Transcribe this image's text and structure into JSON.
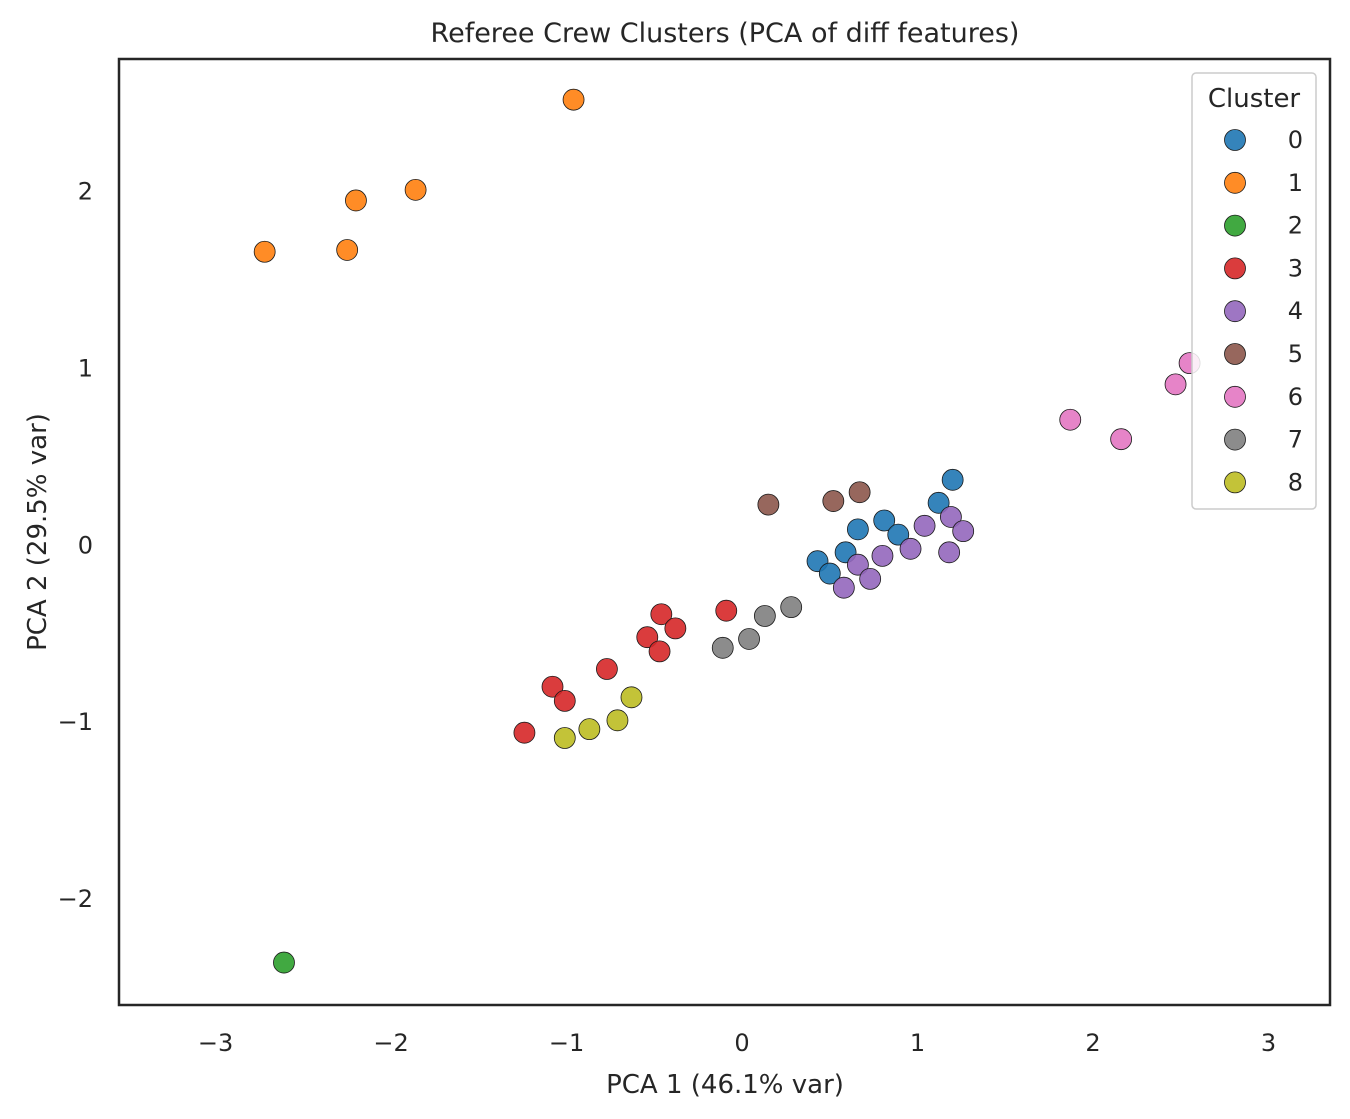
{
  "chart_data": {
    "type": "scatter",
    "title": "Referee Crew Clusters (PCA of diff features)",
    "xlabel": "PCA 1 (46.1% var)",
    "ylabel": "PCA 2 (29.5% var)",
    "xlim": [
      -3.55,
      3.35
    ],
    "ylim": [
      -2.6,
      2.75
    ],
    "xticks": [
      -3,
      -2,
      -1,
      0,
      1,
      2,
      3
    ],
    "xtick_labels": [
      "−3",
      "−2",
      "−1",
      "0",
      "1",
      "2",
      "3"
    ],
    "yticks": [
      -2,
      -1,
      0,
      1,
      2
    ],
    "ytick_labels": [
      "−2",
      "−1",
      "0",
      "1",
      "2"
    ],
    "grid": false,
    "legend": {
      "title": "Cluster",
      "placement": "top-right"
    },
    "series": [
      {
        "name": "0",
        "color": "#1f77b4",
        "points": [
          [
            0.43,
            -0.09
          ],
          [
            0.5,
            -0.16
          ],
          [
            0.59,
            -0.04
          ],
          [
            0.66,
            0.09
          ],
          [
            0.81,
            0.14
          ],
          [
            0.89,
            0.06
          ],
          [
            1.12,
            0.24
          ],
          [
            1.2,
            0.37
          ]
        ]
      },
      {
        "name": "1",
        "color": "#ff7f0e",
        "points": [
          [
            -0.96,
            2.52
          ],
          [
            -1.86,
            2.01
          ],
          [
            -2.2,
            1.95
          ],
          [
            -2.72,
            1.66
          ],
          [
            -2.25,
            1.67
          ]
        ]
      },
      {
        "name": "2",
        "color": "#2ca02c",
        "points": [
          [
            -2.61,
            -2.36
          ]
        ]
      },
      {
        "name": "3",
        "color": "#d62728",
        "points": [
          [
            -0.09,
            -0.37
          ],
          [
            -0.46,
            -0.39
          ],
          [
            -0.38,
            -0.47
          ],
          [
            -0.54,
            -0.52
          ],
          [
            -0.47,
            -0.6
          ],
          [
            -0.77,
            -0.7
          ],
          [
            -1.08,
            -0.8
          ],
          [
            -1.01,
            -0.88
          ],
          [
            -1.24,
            -1.06
          ]
        ]
      },
      {
        "name": "4",
        "color": "#9467bd",
        "points": [
          [
            1.04,
            0.11
          ],
          [
            1.19,
            0.16
          ],
          [
            1.26,
            0.08
          ],
          [
            0.96,
            -0.02
          ],
          [
            0.8,
            -0.06
          ],
          [
            0.66,
            -0.11
          ],
          [
            0.73,
            -0.19
          ],
          [
            0.58,
            -0.24
          ],
          [
            1.18,
            -0.04
          ]
        ]
      },
      {
        "name": "5",
        "color": "#8c564b",
        "points": [
          [
            0.15,
            0.23
          ],
          [
            0.52,
            0.25
          ],
          [
            0.67,
            0.3
          ]
        ]
      },
      {
        "name": "6",
        "color": "#e377c2",
        "points": [
          [
            2.55,
            1.03
          ],
          [
            2.47,
            0.91
          ],
          [
            1.87,
            0.71
          ],
          [
            2.16,
            0.6
          ]
        ]
      },
      {
        "name": "7",
        "color": "#7f7f7f",
        "points": [
          [
            0.28,
            -0.35
          ],
          [
            0.13,
            -0.4
          ],
          [
            0.04,
            -0.53
          ],
          [
            -0.11,
            -0.58
          ]
        ]
      },
      {
        "name": "8",
        "color": "#bcbd22",
        "points": [
          [
            -0.63,
            -0.86
          ],
          [
            -0.71,
            -0.99
          ],
          [
            -0.87,
            -1.04
          ],
          [
            -1.01,
            -1.09
          ]
        ]
      }
    ]
  }
}
